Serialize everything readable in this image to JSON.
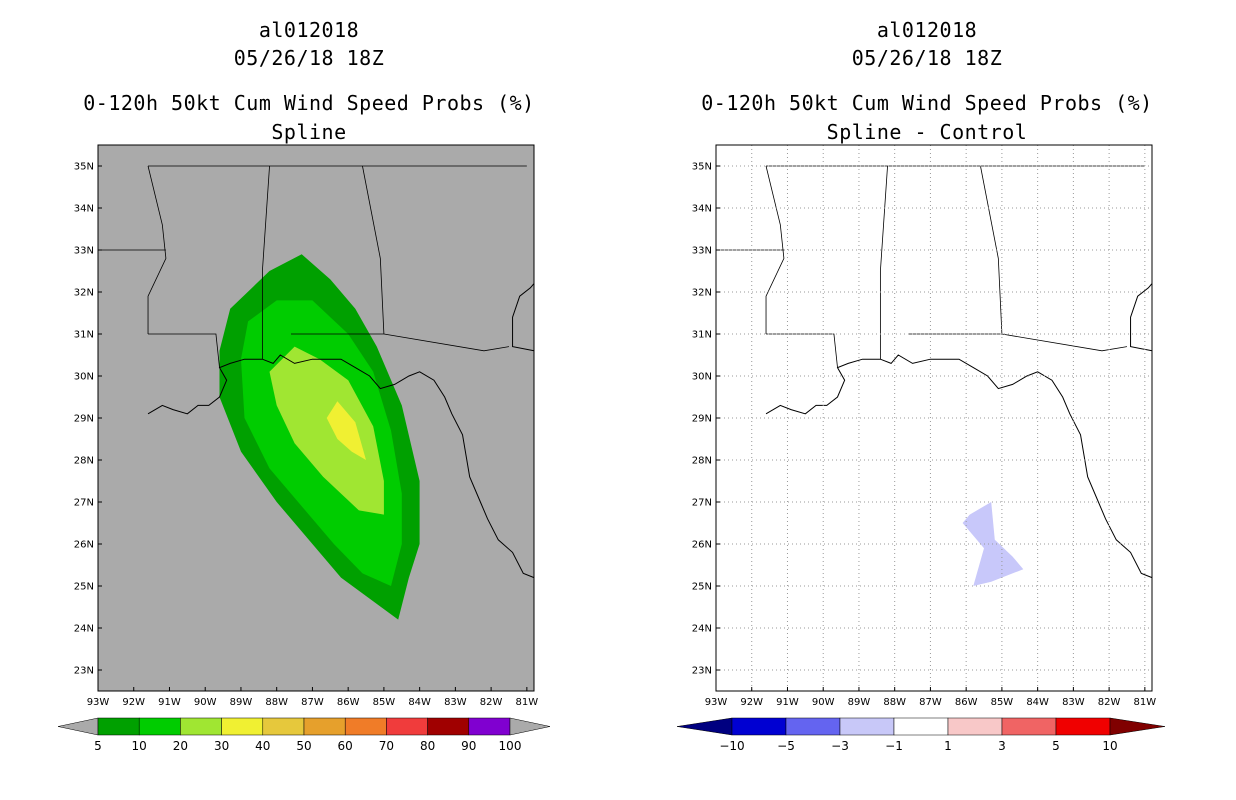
{
  "chart_data": [
    {
      "type": "filled-contour-map",
      "storm_id": "al012018",
      "datetime": "05/26/18 18Z",
      "title": "0-120h 50kt Cum Wind Speed Probs (%)",
      "subtitle": "Spline",
      "background": "#aaaaaa",
      "lon_range": [
        -93,
        -80.8
      ],
      "lat_range": [
        22.5,
        35.5
      ],
      "lon_ticks": [
        "93W",
        "92W",
        "91W",
        "90W",
        "89W",
        "88W",
        "87W",
        "86W",
        "85W",
        "84W",
        "83W",
        "82W",
        "81W"
      ],
      "lat_ticks": [
        "23N",
        "24N",
        "25N",
        "26N",
        "27N",
        "28N",
        "29N",
        "30N",
        "31N",
        "32N",
        "33N",
        "34N",
        "35N"
      ],
      "colorbar": {
        "labels": [
          "5",
          "10",
          "20",
          "30",
          "40",
          "50",
          "60",
          "70",
          "80",
          "90",
          "100"
        ],
        "colors": [
          "#00a000",
          "#00cc00",
          "#a0e632",
          "#f0f032",
          "#e6c83c",
          "#e6a02c",
          "#f07c28",
          "#f03c3c",
          "#a00000",
          "#8000d0"
        ]
      },
      "contours": [
        {
          "level": 5,
          "color": "#00a000",
          "points": [
            [
              -89.6,
              30.6
            ],
            [
              -89.3,
              31.6
            ],
            [
              -88.2,
              32.5
            ],
            [
              -87.3,
              32.9
            ],
            [
              -86.5,
              32.3
            ],
            [
              -85.8,
              31.6
            ],
            [
              -85.2,
              30.7
            ],
            [
              -84.5,
              29.3
            ],
            [
              -84.0,
              27.5
            ],
            [
              -84.0,
              26.0
            ],
            [
              -84.3,
              25.2
            ],
            [
              -84.6,
              24.2
            ],
            [
              -85.4,
              24.7
            ],
            [
              -86.2,
              25.2
            ],
            [
              -87.0,
              26.0
            ],
            [
              -88.0,
              27.0
            ],
            [
              -89.0,
              28.2
            ],
            [
              -89.6,
              29.5
            ]
          ]
        },
        {
          "level": 10,
          "color": "#00cc00",
          "points": [
            [
              -89.0,
              30.4
            ],
            [
              -88.8,
              31.3
            ],
            [
              -88.0,
              31.8
            ],
            [
              -87.0,
              31.8
            ],
            [
              -86.0,
              31.0
            ],
            [
              -85.3,
              30.1
            ],
            [
              -84.8,
              28.7
            ],
            [
              -84.5,
              27.2
            ],
            [
              -84.5,
              26.0
            ],
            [
              -84.8,
              25.0
            ],
            [
              -85.6,
              25.3
            ],
            [
              -86.4,
              26.0
            ],
            [
              -87.4,
              27.0
            ],
            [
              -88.2,
              27.8
            ],
            [
              -88.9,
              29.0
            ]
          ]
        },
        {
          "level": 20,
          "color": "#a0e632",
          "points": [
            [
              -88.2,
              30.1
            ],
            [
              -87.5,
              30.7
            ],
            [
              -86.8,
              30.4
            ],
            [
              -86.0,
              29.9
            ],
            [
              -85.3,
              28.8
            ],
            [
              -85.0,
              27.5
            ],
            [
              -85.0,
              26.7
            ],
            [
              -85.7,
              26.8
            ],
            [
              -86.7,
              27.6
            ],
            [
              -87.5,
              28.4
            ],
            [
              -88.0,
              29.3
            ]
          ]
        },
        {
          "level": 30,
          "color": "#f0f032",
          "points": [
            [
              -86.6,
              29.0
            ],
            [
              -86.3,
              29.4
            ],
            [
              -85.8,
              28.9
            ],
            [
              -85.5,
              28.0
            ],
            [
              -85.9,
              28.2
            ],
            [
              -86.3,
              28.5
            ]
          ]
        }
      ]
    },
    {
      "type": "filled-contour-map",
      "storm_id": "al012018",
      "datetime": "05/26/18 18Z",
      "title": "0-120h 50kt Cum Wind Speed Probs (%)",
      "subtitle": "Spline - Control",
      "background": "#ffffff",
      "lon_range": [
        -93,
        -80.8
      ],
      "lat_range": [
        22.5,
        35.5
      ],
      "lon_ticks": [
        "93W",
        "92W",
        "91W",
        "90W",
        "89W",
        "88W",
        "87W",
        "86W",
        "85W",
        "84W",
        "83W",
        "82W",
        "81W"
      ],
      "lat_ticks": [
        "23N",
        "24N",
        "25N",
        "26N",
        "27N",
        "28N",
        "29N",
        "30N",
        "31N",
        "32N",
        "33N",
        "34N",
        "35N"
      ],
      "colorbar": {
        "labels": [
          "-10",
          "-5",
          "-3",
          "-1",
          "1",
          "3",
          "5",
          "10"
        ],
        "colors": [
          "#0000d2",
          "#6464f0",
          "#c8c8f8",
          "#ffffff",
          "#f8c8c8",
          "#f06464",
          "#f00000"
        ],
        "left_arrow_color": "#000080",
        "right_arrow_color": "#800000"
      },
      "contours": [
        {
          "level": -3,
          "color": "#c8c8fa",
          "points": [
            [
              -86.1,
              26.5
            ],
            [
              -85.9,
              26.7
            ],
            [
              -85.3,
              27.0
            ],
            [
              -85.2,
              26.1
            ],
            [
              -84.7,
              25.7
            ],
            [
              -84.4,
              25.4
            ],
            [
              -85.3,
              25.1
            ],
            [
              -85.8,
              25.0
            ],
            [
              -85.5,
              25.9
            ]
          ]
        }
      ]
    }
  ]
}
